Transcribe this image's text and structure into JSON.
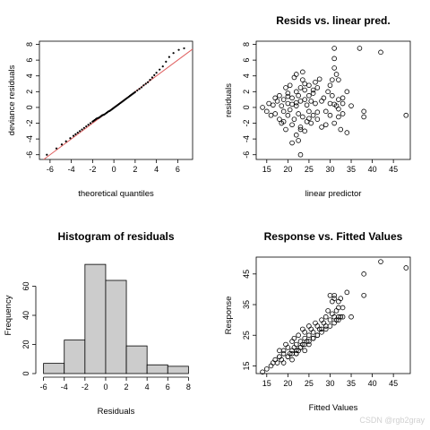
{
  "watermark": "CSDN @rgb2gray",
  "chart_data": [
    {
      "type": "scatter",
      "title": "",
      "xlabel": "theoretical quantiles",
      "ylabel": "deviance residuals",
      "xlim": [
        -7,
        7.4
      ],
      "ylim": [
        -6.6,
        8.4
      ],
      "xticks": [
        -6,
        -4,
        -2,
        0,
        2,
        4,
        6
      ],
      "yticks": [
        -6,
        -4,
        -2,
        0,
        2,
        4,
        6,
        8
      ],
      "reference_line": {
        "intercept": 0,
        "slope": 1,
        "color": "#e06060"
      },
      "point_style": "small-dots",
      "series": [
        {
          "x": [
            -6.3,
            -5.4,
            -4.9,
            -4.5,
            -4.1,
            -3.8,
            -3.6,
            -3.4,
            -3.2,
            -3.0,
            -2.8,
            -2.6,
            -2.4,
            -2.2,
            -2.0,
            -1.9,
            -1.8,
            -1.7,
            -1.6,
            -1.5,
            -1.4,
            -1.3,
            -1.2,
            -1.1,
            -1.0,
            -0.9,
            -0.8,
            -0.7,
            -0.6,
            -0.5,
            -0.4,
            -0.3,
            -0.2,
            -0.1,
            0.0,
            0.1,
            0.2,
            0.3,
            0.4,
            0.5,
            0.6,
            0.7,
            0.8,
            0.9,
            1.0,
            1.1,
            1.2,
            1.3,
            1.4,
            1.5,
            1.6,
            1.7,
            1.8,
            1.9,
            2.0,
            2.2,
            2.4,
            2.6,
            2.8,
            3.0,
            3.2,
            3.4,
            3.6,
            3.8,
            4.0,
            4.3,
            4.6,
            4.9,
            5.2,
            5.6,
            6.1,
            6.6
          ],
          "y": [
            -6.0,
            -5.2,
            -4.7,
            -4.3,
            -3.9,
            -3.6,
            -3.4,
            -3.2,
            -3.0,
            -2.8,
            -2.6,
            -2.4,
            -2.2,
            -2.0,
            -1.8,
            -1.7,
            -1.6,
            -1.5,
            -1.4,
            -1.35,
            -1.3,
            -1.2,
            -1.1,
            -1.0,
            -0.95,
            -0.9,
            -0.8,
            -0.7,
            -0.6,
            -0.5,
            -0.45,
            -0.35,
            -0.25,
            -0.15,
            -0.05,
            0.05,
            0.15,
            0.25,
            0.35,
            0.45,
            0.55,
            0.65,
            0.75,
            0.85,
            0.95,
            1.05,
            1.15,
            1.25,
            1.35,
            1.45,
            1.55,
            1.65,
            1.75,
            1.85,
            1.95,
            2.15,
            2.35,
            2.55,
            2.8,
            3.0,
            3.2,
            3.5,
            3.8,
            4.1,
            4.4,
            4.8,
            5.2,
            5.8,
            6.4,
            6.9,
            7.3,
            7.5
          ]
        }
      ]
    },
    {
      "type": "scatter",
      "title": "Resids vs. linear pred.",
      "xlabel": "linear predictor",
      "ylabel": "residuals",
      "xlim": [
        12.5,
        49
      ],
      "ylim": [
        -6.6,
        8.4
      ],
      "xticks": [
        15,
        20,
        25,
        30,
        35,
        40,
        45
      ],
      "yticks": [
        -6,
        -4,
        -2,
        0,
        2,
        4,
        6,
        8
      ],
      "point_style": "open-circles",
      "series": [
        {
          "x": [
            14,
            15,
            15.5,
            16,
            16.5,
            17,
            17,
            17.5,
            18,
            18,
            18.5,
            18.5,
            19,
            19,
            19.5,
            19.5,
            20,
            20,
            20,
            20.5,
            20.5,
            21,
            21,
            21,
            21.5,
            21.5,
            22,
            22,
            22,
            22,
            22.5,
            22.5,
            22.5,
            23,
            23,
            23,
            23,
            23.5,
            23.5,
            23.5,
            24,
            24,
            24,
            24.5,
            24.5,
            25,
            25,
            25,
            25.5,
            25.5,
            26,
            26,
            26.5,
            26.5,
            27,
            27,
            27.5,
            28,
            28,
            28.5,
            29,
            29.5,
            30,
            30,
            30.5,
            30.5,
            31,
            31,
            31,
            31,
            31.5,
            31.5,
            32,
            32,
            32,
            32.5,
            33,
            33,
            34,
            34,
            35,
            37,
            38,
            38,
            42,
            48,
            31,
            32,
            33,
            30,
            29,
            27,
            26,
            25,
            24,
            23,
            22,
            21,
            20,
            19
          ],
          "y": [
            0,
            -0.5,
            0.5,
            -1,
            0.3,
            1.2,
            -0.8,
            0.8,
            1.5,
            -1.5,
            0.2,
            -2,
            1,
            -0.5,
            2.5,
            -2.8,
            0.5,
            -1,
            1.8,
            -0.3,
            2.8,
            1.2,
            -2.2,
            0.4,
            3.8,
            -1.5,
            2,
            0.2,
            -3.5,
            4.2,
            1.5,
            -0.8,
            -4.2,
            2.5,
            -2.5,
            0.8,
            -6,
            3.5,
            -1.2,
            4.5,
            1,
            -3,
            2.2,
            0.3,
            -1.8,
            2.8,
            -0.5,
            1.5,
            -2,
            0.8,
            1.8,
            -1,
            3.2,
            0.5,
            2.5,
            -1.5,
            3.6,
            0.8,
            -2.5,
            1.2,
            -0.5,
            2,
            0.5,
            -1,
            3.5,
            1.5,
            7.5,
            6.2,
            5,
            -2,
            4.2,
            0.2,
            1,
            -1.2,
            3.5,
            -2.8,
            0.5,
            -0.8,
            2,
            -3.2,
            0.2,
            7.5,
            -0.5,
            -1.2,
            7,
            -1,
            0.4,
            -0.2,
            1.2,
            2.8,
            -2.2,
            -0.6,
            2.2,
            -1.4,
            3,
            -2.8,
            0.6,
            -4.5,
            1.4,
            -1.8
          ]
        }
      ]
    },
    {
      "type": "bar",
      "title": "Histogram of residuals",
      "xlabel": "Residuals",
      "ylabel": "Frequency",
      "xlim": [
        -6.4,
        8.4
      ],
      "ylim": [
        0,
        80
      ],
      "xticks": [
        -6,
        -4,
        -2,
        0,
        2,
        4,
        6,
        8
      ],
      "yticks": [
        0,
        20,
        40,
        60
      ],
      "bins": [
        {
          "from": -6,
          "to": -4,
          "count": 7
        },
        {
          "from": -4,
          "to": -2,
          "count": 23
        },
        {
          "from": -2,
          "to": 0,
          "count": 75
        },
        {
          "from": 0,
          "to": 2,
          "count": 64
        },
        {
          "from": 2,
          "to": 4,
          "count": 19
        },
        {
          "from": 4,
          "to": 6,
          "count": 6
        },
        {
          "from": 6,
          "to": 8,
          "count": 5
        }
      ],
      "bar_color": "#cccccc"
    },
    {
      "type": "scatter",
      "title": "Response vs. Fitted Values",
      "xlabel": "Fitted Values",
      "ylabel": "Response",
      "xlim": [
        12.5,
        49
      ],
      "ylim": [
        12.5,
        50.5
      ],
      "xticks": [
        15,
        20,
        25,
        30,
        35,
        40,
        45
      ],
      "yticks": [
        15,
        25,
        35,
        45
      ],
      "point_style": "open-circles",
      "series": [
        {
          "x": [
            14,
            15,
            16,
            16.5,
            17,
            17.5,
            18,
            18,
            18.5,
            19,
            19,
            19.5,
            20,
            20,
            20.5,
            21,
            21,
            21.5,
            21.5,
            22,
            22,
            22.5,
            22.5,
            23,
            23,
            23.5,
            23.5,
            24,
            24,
            24.5,
            25,
            25,
            25.5,
            26,
            26,
            26.5,
            27,
            27,
            27.5,
            28,
            28,
            28.5,
            29,
            29,
            29.5,
            30,
            30,
            30.5,
            30.5,
            31,
            31,
            31,
            31.5,
            31.5,
            32,
            32,
            32,
            32.5,
            32.5,
            33,
            33,
            34,
            35,
            38,
            38,
            42,
            48,
            20,
            21,
            22,
            23,
            24,
            25,
            26,
            27,
            28,
            29,
            30,
            31,
            32,
            19,
            18,
            21,
            22,
            23,
            24,
            25,
            26
          ],
          "y": [
            13,
            14,
            15,
            16,
            17,
            16,
            18,
            20,
            17,
            19,
            16,
            22,
            21,
            18,
            19,
            23,
            20,
            21,
            24,
            19,
            22,
            20,
            25,
            23,
            21,
            22,
            27,
            24,
            26,
            23,
            25,
            28,
            27,
            26,
            24,
            29,
            28,
            25,
            27,
            30,
            27,
            29,
            31,
            28,
            33,
            38,
            30,
            36,
            32,
            37,
            31,
            38,
            30,
            33,
            31,
            36,
            34,
            31,
            37,
            31,
            34,
            39,
            31,
            45,
            38,
            49,
            47,
            18,
            17,
            19,
            21,
            20,
            22,
            24,
            25,
            26,
            27,
            28,
            29,
            30,
            20,
            18,
            19,
            20,
            21,
            22,
            23,
            24
          ]
        }
      ]
    }
  ]
}
